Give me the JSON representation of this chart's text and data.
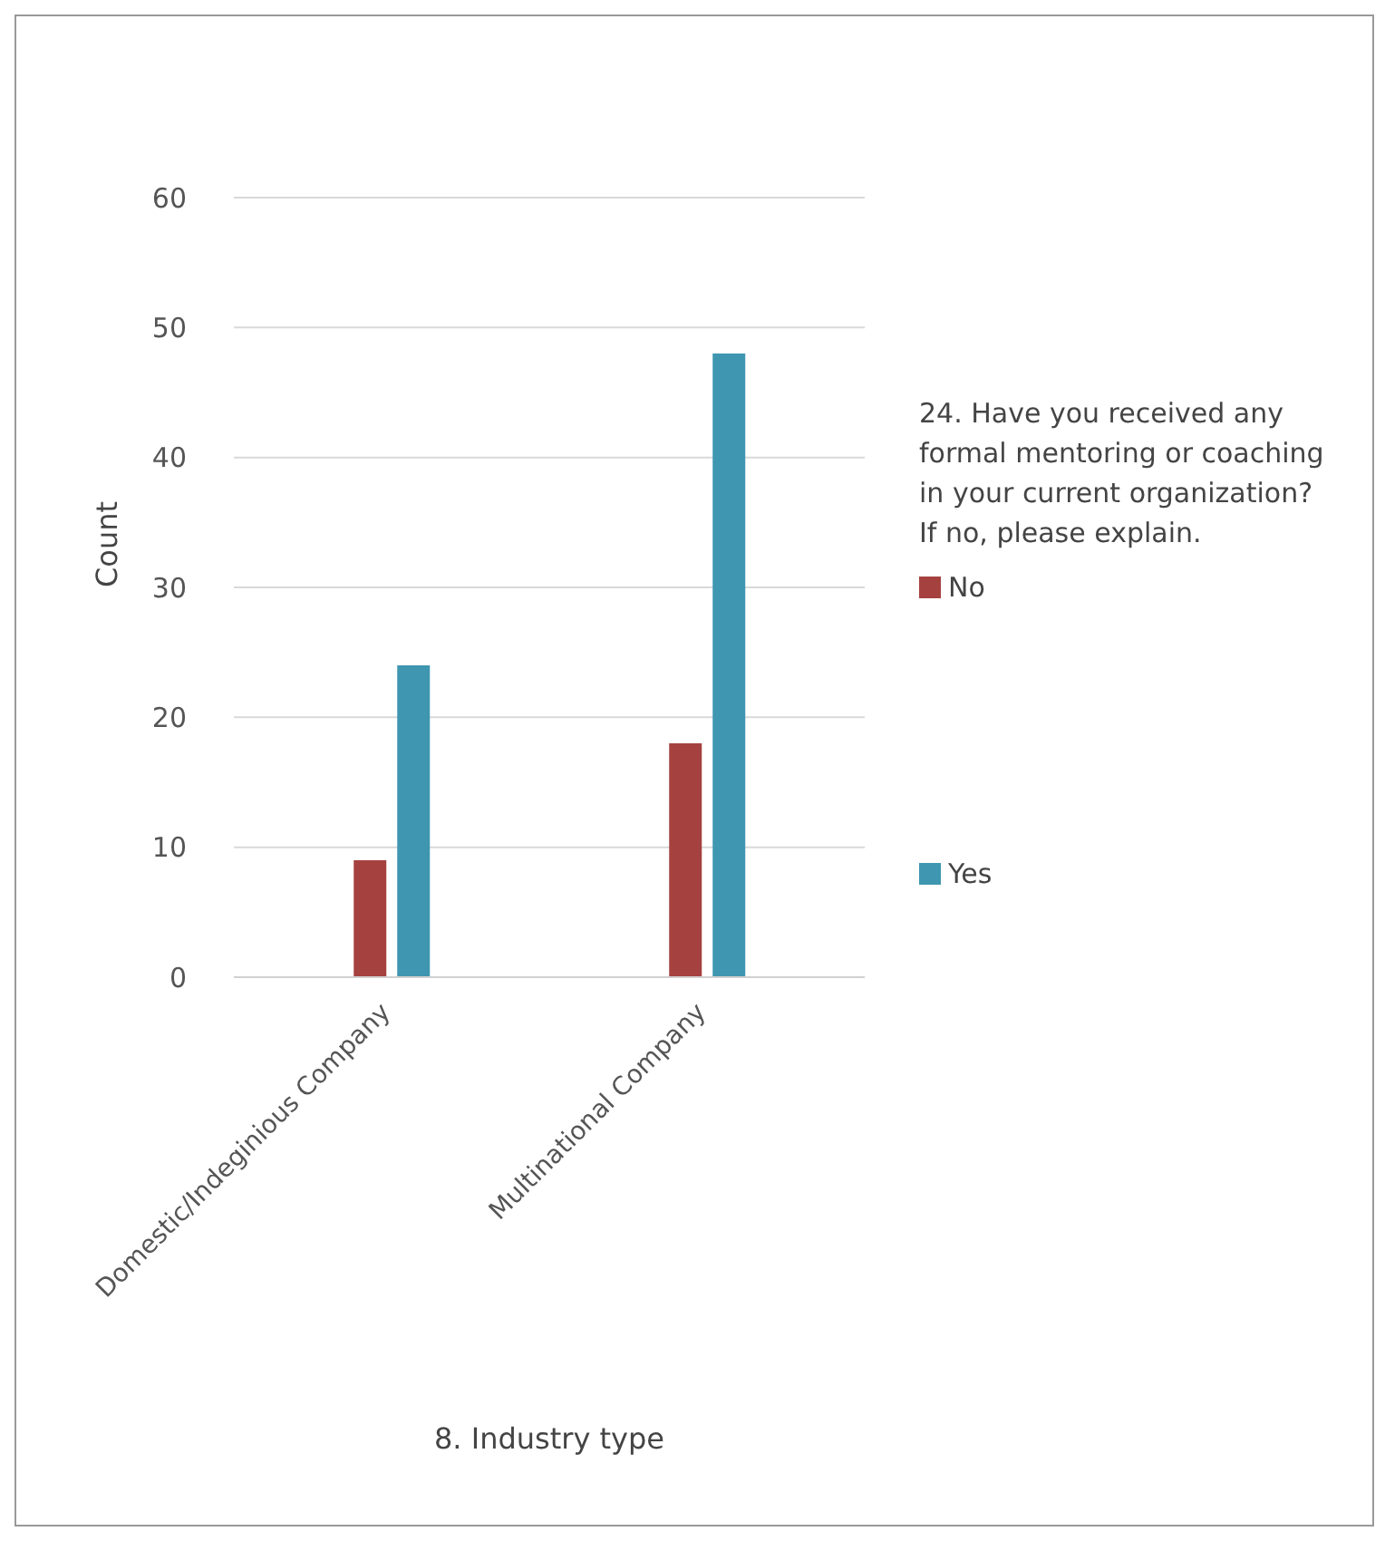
{
  "chart_data": {
    "type": "bar",
    "xlabel": "8. Industry type",
    "ylabel": "Count",
    "legend_title": "24. Have you received any formal mentoring or coaching in your current organization? If no, please explain.",
    "categories": [
      "Domestic/Indeginious Company",
      "Multinational Company"
    ],
    "series": [
      {
        "name": "No",
        "color": "#a5423f",
        "values": [
          9,
          18
        ]
      },
      {
        "name": "Yes",
        "color": "#3f96b0",
        "values": [
          24,
          48
        ]
      }
    ],
    "ylim": [
      0,
      60
    ],
    "yticks": [
      0,
      10,
      20,
      30,
      40,
      50,
      60
    ],
    "grid": "y",
    "legend": "right"
  }
}
